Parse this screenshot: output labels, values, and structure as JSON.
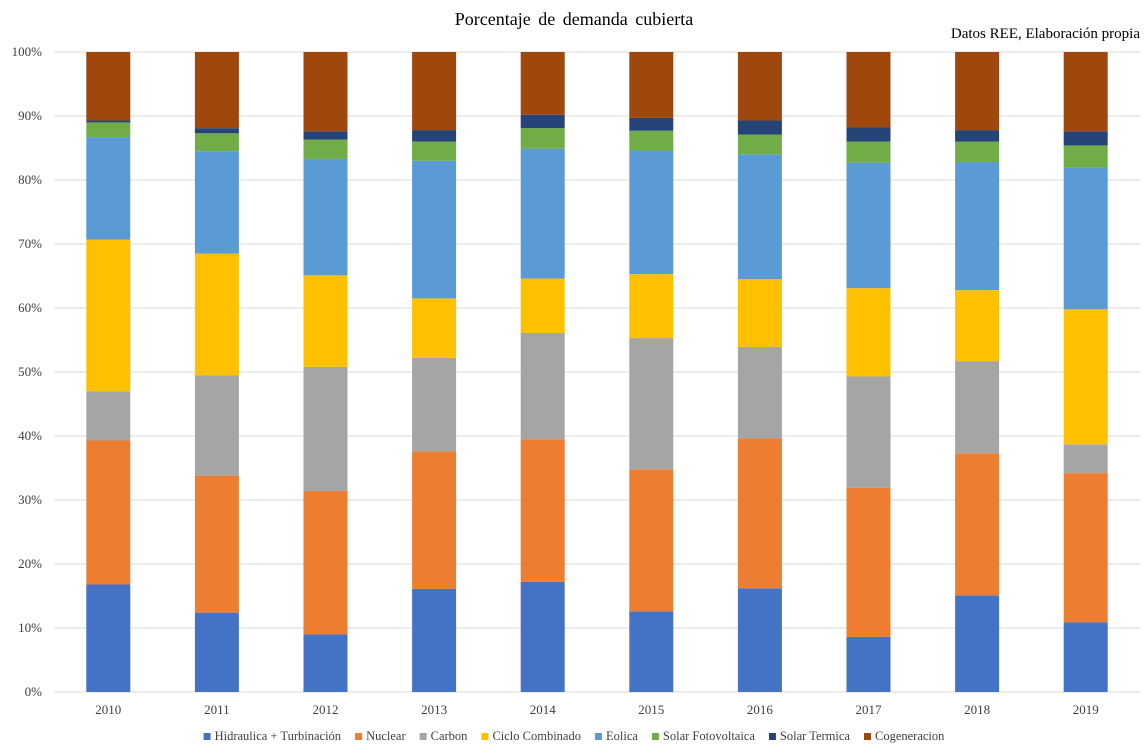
{
  "chart_data": {
    "type": "bar",
    "stacked": true,
    "percent": true,
    "title": "Porcentaje  de  demanda  cubierta",
    "subtitle": "Datos REE, Elaboración propia",
    "categories": [
      "2010",
      "2011",
      "2012",
      "2013",
      "2014",
      "2015",
      "2016",
      "2017",
      "2018",
      "2019"
    ],
    "yticks": [
      "0%",
      "10%",
      "20%",
      "30%",
      "40%",
      "50%",
      "60%",
      "70%",
      "80%",
      "90%",
      "100%"
    ],
    "ylim": [
      0,
      100
    ],
    "grid": true,
    "legend_position": "bottom",
    "series": [
      {
        "name": "Hidraulica + Turbinación",
        "color": "#4472C4",
        "values": [
          16.8,
          12.4,
          9.0,
          16.1,
          17.2,
          12.6,
          16.2,
          8.6,
          15.1,
          10.9
        ]
      },
      {
        "name": "Nuclear",
        "color": "#ED7D31",
        "values": [
          22.5,
          21.4,
          22.4,
          21.5,
          22.3,
          22.2,
          23.4,
          23.3,
          22.2,
          23.3
        ]
      },
      {
        "name": "Carbon",
        "color": "#A5A5A5",
        "values": [
          7.7,
          15.7,
          19.4,
          14.6,
          16.6,
          20.5,
          14.3,
          17.4,
          14.4,
          4.5
        ]
      },
      {
        "name": "Ciclo Combinado",
        "color": "#FFC000",
        "values": [
          23.7,
          19.0,
          14.3,
          9.3,
          8.5,
          10.0,
          10.6,
          13.8,
          11.1,
          21.1
        ]
      },
      {
        "name": "Eolica",
        "color": "#5B9BD5",
        "values": [
          16.0,
          16.0,
          18.2,
          21.5,
          20.3,
          19.3,
          19.5,
          19.6,
          20.0,
          22.1
        ]
      },
      {
        "name": "Solar Fotovoltaica",
        "color": "#70AD47",
        "values": [
          2.3,
          2.8,
          3.0,
          3.0,
          3.2,
          3.1,
          3.1,
          3.3,
          3.2,
          3.5
        ]
      },
      {
        "name": "Solar Termica",
        "color": "#264478",
        "values": [
          0.3,
          0.8,
          1.3,
          1.8,
          2.1,
          2.0,
          2.2,
          2.2,
          1.8,
          2.2
        ]
      },
      {
        "name": "Cogeneracion",
        "color": "#9E480E",
        "values": [
          10.7,
          11.9,
          12.4,
          12.2,
          9.8,
          10.3,
          10.7,
          11.8,
          12.2,
          12.4
        ]
      }
    ]
  }
}
